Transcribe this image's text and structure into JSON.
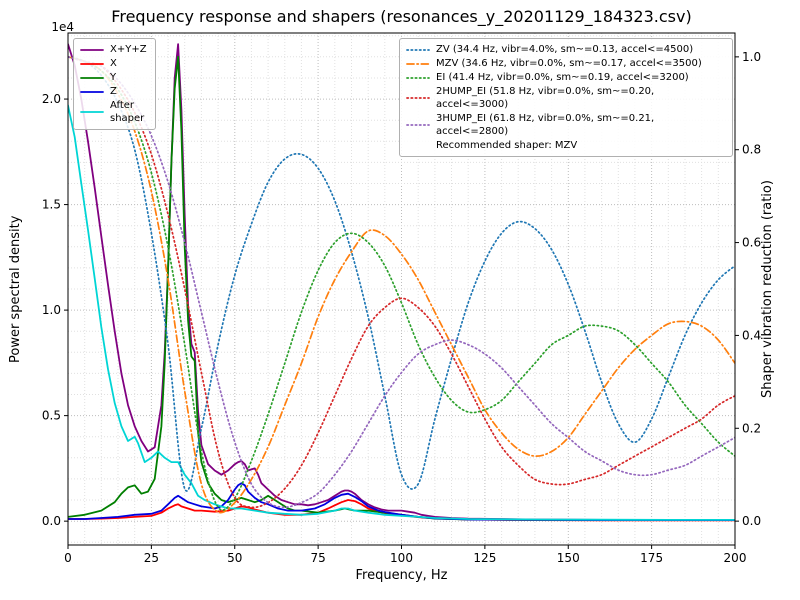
{
  "chart_data": {
    "type": "line",
    "title": "Frequency response and shapers (resonances_y_20201129_184323.csv)",
    "xlabel": "Frequency, Hz",
    "ylabel_left": "Power spectral density",
    "ylabel_right": "Shaper vibration reduction (ratio)",
    "y_offset_label": "1e4",
    "xlim": [
      0,
      200
    ],
    "ylim_left": [
      -0.113,
      2.313
    ],
    "ylim_right": [
      -0.0514,
      1.0514
    ],
    "x_ticks": [
      0,
      25,
      50,
      75,
      100,
      125,
      150,
      175,
      200
    ],
    "y_ticks_left": [
      0.0,
      0.5,
      1.0,
      1.5,
      2.0
    ],
    "y_ticks_right": [
      0.0,
      0.2,
      0.4,
      0.6,
      0.8,
      1.0
    ],
    "y_scale_note": "left axis values in units of 1e4",
    "grid": {
      "major_color": "#bdbdbd",
      "minor_color": "#e0e0e0",
      "x_minor_step": 5,
      "y_minor_step": 0.1
    },
    "psd_series": [
      {
        "name": "xyz",
        "label": "X+Y+Z",
        "color": "#800080",
        "style": "solid",
        "x": [
          0,
          2,
          4,
          6,
          8,
          10,
          12,
          14,
          16,
          18,
          20,
          22,
          24,
          26,
          28,
          29,
          30,
          31,
          32,
          33,
          34,
          35,
          36,
          37,
          38,
          39,
          40,
          42,
          44,
          46,
          48,
          50,
          51,
          52,
          53,
          54,
          55,
          56,
          57,
          58,
          60,
          62,
          64,
          66,
          68,
          70,
          72,
          74,
          76,
          78,
          80,
          82,
          83,
          84,
          85,
          86,
          88,
          90,
          92,
          94,
          96,
          98,
          100,
          102,
          104,
          106,
          108,
          110,
          115,
          120,
          130,
          140,
          150,
          160,
          170,
          180,
          190,
          200
        ],
        "y": [
          2.26,
          2.16,
          2.0,
          1.8,
          1.58,
          1.35,
          1.12,
          0.9,
          0.7,
          0.55,
          0.45,
          0.38,
          0.33,
          0.35,
          0.55,
          0.8,
          1.2,
          1.7,
          2.1,
          2.26,
          1.95,
          1.45,
          1.02,
          0.84,
          0.8,
          0.52,
          0.36,
          0.27,
          0.24,
          0.22,
          0.24,
          0.27,
          0.28,
          0.285,
          0.27,
          0.24,
          0.245,
          0.25,
          0.22,
          0.18,
          0.15,
          0.12,
          0.1,
          0.09,
          0.08,
          0.08,
          0.075,
          0.08,
          0.09,
          0.1,
          0.12,
          0.14,
          0.145,
          0.145,
          0.14,
          0.13,
          0.1,
          0.08,
          0.065,
          0.055,
          0.05,
          0.05,
          0.05,
          0.045,
          0.04,
          0.03,
          0.025,
          0.02,
          0.015,
          0.012,
          0.01,
          0.008,
          0.007,
          0.006,
          0.006,
          0.005,
          0.005,
          0.005
        ]
      },
      {
        "name": "x",
        "label": "X",
        "color": "#ff0000",
        "style": "solid",
        "x": [
          0,
          5,
          10,
          15,
          20,
          25,
          28,
          30,
          32,
          33,
          34,
          36,
          38,
          40,
          44,
          48,
          50,
          52,
          54,
          56,
          60,
          65,
          70,
          75,
          78,
          80,
          82,
          84,
          86,
          88,
          90,
          93,
          96,
          100,
          104,
          108,
          112,
          120,
          130,
          140,
          160,
          180,
          200
        ],
        "y": [
          0.01,
          0.01,
          0.012,
          0.015,
          0.02,
          0.025,
          0.04,
          0.06,
          0.075,
          0.08,
          0.07,
          0.06,
          0.05,
          0.05,
          0.045,
          0.05,
          0.06,
          0.07,
          0.065,
          0.055,
          0.04,
          0.03,
          0.03,
          0.04,
          0.06,
          0.075,
          0.09,
          0.1,
          0.095,
          0.08,
          0.06,
          0.045,
          0.035,
          0.03,
          0.02,
          0.015,
          0.012,
          0.008,
          0.006,
          0.005,
          0.004,
          0.004,
          0.004
        ]
      },
      {
        "name": "y",
        "label": "Y",
        "color": "#007f00",
        "style": "solid",
        "x": [
          0,
          5,
          10,
          14,
          16,
          18,
          20,
          22,
          24,
          26,
          28,
          29,
          30,
          31,
          32,
          33,
          34,
          35,
          36,
          37,
          38,
          39,
          40,
          42,
          44,
          46,
          48,
          50,
          52,
          54,
          56,
          58,
          60,
          62,
          64,
          66,
          68,
          70,
          75,
          80,
          83,
          86,
          90,
          95,
          100,
          105,
          110,
          120,
          140,
          160,
          180,
          200
        ],
        "y": [
          0.02,
          0.03,
          0.05,
          0.09,
          0.13,
          0.16,
          0.17,
          0.13,
          0.14,
          0.2,
          0.45,
          0.75,
          1.2,
          1.7,
          2.05,
          2.2,
          1.85,
          1.3,
          0.95,
          0.78,
          0.76,
          0.42,
          0.28,
          0.18,
          0.13,
          0.1,
          0.09,
          0.1,
          0.11,
          0.1,
          0.09,
          0.1,
          0.12,
          0.1,
          0.08,
          0.06,
          0.05,
          0.05,
          0.04,
          0.05,
          0.06,
          0.05,
          0.05,
          0.04,
          0.03,
          0.02,
          0.012,
          0.008,
          0.006,
          0.005,
          0.005,
          0.005
        ]
      },
      {
        "name": "z",
        "label": "Z",
        "color": "#0000e0",
        "style": "solid",
        "x": [
          0,
          5,
          10,
          15,
          20,
          25,
          28,
          30,
          32,
          33,
          34,
          36,
          38,
          40,
          42,
          44,
          46,
          48,
          50,
          51,
          52,
          53,
          54,
          56,
          58,
          60,
          63,
          66,
          70,
          74,
          77,
          80,
          82,
          84,
          86,
          88,
          90,
          93,
          96,
          100,
          105,
          110,
          120,
          140,
          160,
          180,
          200
        ],
        "y": [
          0.01,
          0.01,
          0.015,
          0.02,
          0.03,
          0.035,
          0.05,
          0.08,
          0.11,
          0.12,
          0.11,
          0.09,
          0.08,
          0.07,
          0.065,
          0.06,
          0.07,
          0.1,
          0.15,
          0.17,
          0.18,
          0.17,
          0.14,
          0.11,
          0.09,
          0.08,
          0.06,
          0.05,
          0.05,
          0.06,
          0.08,
          0.11,
          0.125,
          0.13,
          0.115,
          0.095,
          0.07,
          0.05,
          0.04,
          0.03,
          0.02,
          0.013,
          0.008,
          0.006,
          0.005,
          0.005,
          0.005
        ]
      },
      {
        "name": "after-shaper",
        "label": "After\nshaper",
        "color": "#00d5d5",
        "style": "solid",
        "x": [
          0,
          2,
          4,
          6,
          8,
          10,
          12,
          14,
          16,
          18,
          20,
          21,
          23,
          25,
          27,
          29,
          31,
          33,
          35,
          37,
          39,
          41,
          44,
          48,
          52,
          56,
          60,
          65,
          70,
          75,
          80,
          82,
          84,
          86,
          90,
          95,
          100,
          105,
          110,
          120,
          140,
          160,
          180,
          200
        ],
        "y": [
          1.97,
          1.82,
          1.6,
          1.38,
          1.15,
          0.92,
          0.72,
          0.56,
          0.45,
          0.38,
          0.4,
          0.37,
          0.28,
          0.3,
          0.33,
          0.3,
          0.28,
          0.28,
          0.22,
          0.18,
          0.12,
          0.1,
          0.08,
          0.06,
          0.06,
          0.05,
          0.04,
          0.035,
          0.03,
          0.035,
          0.05,
          0.06,
          0.06,
          0.05,
          0.04,
          0.03,
          0.025,
          0.02,
          0.015,
          0.01,
          0.008,
          0.007,
          0.006,
          0.006
        ]
      }
    ],
    "shaper_x": [
      0,
      5,
      10,
      15,
      20,
      25,
      30,
      35,
      40,
      45,
      50,
      55,
      60,
      65,
      70,
      75,
      80,
      85,
      90,
      95,
      100,
      105,
      110,
      115,
      120,
      125,
      130,
      135,
      140,
      145,
      150,
      155,
      160,
      165,
      170,
      175,
      180,
      185,
      190,
      195,
      200
    ],
    "shaper_series": [
      {
        "name": "zv",
        "label": "ZV (34.4 Hz, vibr=4.0%, sm~=0.13, accel<=4500)",
        "color": "#1f77b4",
        "style": "dotted",
        "y": [
          1.0,
          0.99,
          0.96,
          0.9,
          0.8,
          0.62,
          0.38,
          0.07,
          0.2,
          0.38,
          0.53,
          0.64,
          0.73,
          0.78,
          0.79,
          0.76,
          0.69,
          0.58,
          0.44,
          0.27,
          0.1,
          0.08,
          0.22,
          0.35,
          0.47,
          0.56,
          0.62,
          0.645,
          0.63,
          0.585,
          0.51,
          0.41,
          0.3,
          0.21,
          0.17,
          0.22,
          0.31,
          0.4,
          0.47,
          0.52,
          0.55
        ]
      },
      {
        "name": "mzv",
        "label": "MZV (34.6 Hz, vibr=0.0%, sm~=0.17, accel<=3500)",
        "color": "#ff7f0e",
        "style": "dashdot",
        "y": [
          1.0,
          0.99,
          0.97,
          0.92,
          0.84,
          0.71,
          0.52,
          0.28,
          0.08,
          0.02,
          0.04,
          0.09,
          0.16,
          0.25,
          0.34,
          0.44,
          0.52,
          0.58,
          0.625,
          0.615,
          0.575,
          0.52,
          0.45,
          0.38,
          0.31,
          0.24,
          0.19,
          0.155,
          0.14,
          0.15,
          0.18,
          0.23,
          0.28,
          0.33,
          0.37,
          0.4,
          0.425,
          0.43,
          0.42,
          0.39,
          0.34
        ]
      },
      {
        "name": "ei",
        "label": "EI (41.4 Hz, vibr=0.0%, sm~=0.19, accel<=3200)",
        "color": "#2ca02c",
        "style": "dotted",
        "y": [
          1.0,
          0.99,
          0.97,
          0.93,
          0.86,
          0.75,
          0.59,
          0.38,
          0.15,
          0.03,
          0.05,
          0.13,
          0.23,
          0.34,
          0.45,
          0.54,
          0.6,
          0.62,
          0.6,
          0.55,
          0.47,
          0.38,
          0.31,
          0.26,
          0.235,
          0.24,
          0.26,
          0.3,
          0.34,
          0.38,
          0.4,
          0.42,
          0.42,
          0.41,
          0.38,
          0.34,
          0.3,
          0.25,
          0.21,
          0.17,
          0.14
        ]
      },
      {
        "name": "2hump-ei",
        "label": "2HUMP_EI (51.8 Hz, vibr=0.0%, sm~=0.20, accel<=3000)",
        "color": "#d62728",
        "style": "dotted",
        "y": [
          1.0,
          0.99,
          0.98,
          0.94,
          0.88,
          0.79,
          0.66,
          0.5,
          0.32,
          0.15,
          0.05,
          0.03,
          0.04,
          0.07,
          0.12,
          0.19,
          0.27,
          0.35,
          0.42,
          0.46,
          0.48,
          0.46,
          0.42,
          0.36,
          0.29,
          0.22,
          0.16,
          0.12,
          0.09,
          0.08,
          0.08,
          0.09,
          0.1,
          0.12,
          0.14,
          0.16,
          0.18,
          0.2,
          0.22,
          0.25,
          0.27
        ]
      },
      {
        "name": "3hump-ei",
        "label": "3HUMP_EI (61.8 Hz, vibr=0.0%, sm~=0.21, accel<=2800)",
        "color": "#9467bd",
        "style": "dotted",
        "y": [
          1.0,
          0.99,
          0.98,
          0.95,
          0.9,
          0.83,
          0.73,
          0.6,
          0.45,
          0.3,
          0.17,
          0.08,
          0.04,
          0.03,
          0.04,
          0.06,
          0.1,
          0.15,
          0.21,
          0.27,
          0.32,
          0.36,
          0.38,
          0.39,
          0.38,
          0.36,
          0.33,
          0.29,
          0.25,
          0.21,
          0.18,
          0.15,
          0.13,
          0.11,
          0.1,
          0.1,
          0.11,
          0.12,
          0.14,
          0.16,
          0.18
        ]
      }
    ],
    "legend_note": "Recommended shaper: MZV"
  }
}
